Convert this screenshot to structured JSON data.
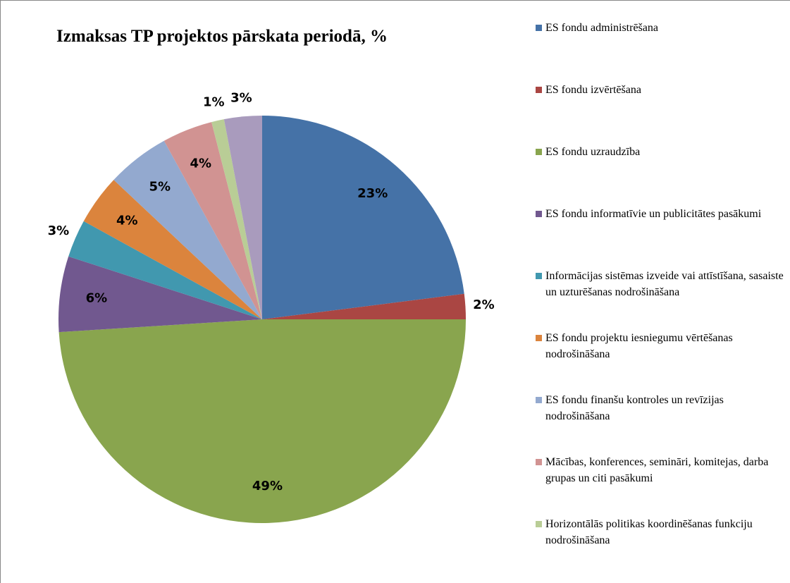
{
  "chart_data": {
    "type": "pie",
    "title": "Izmaksas TP projektos pārskata periodā, %",
    "categories": [
      "ES fondu administrēšana",
      "ES fondu izvērtēšana",
      "ES fondu uzraudzība",
      "ES fondu informatīvie un publicitātes pasākumi",
      "Informācijas sistēmas izveide vai attīstīšana, sasaiste un uzturēšanas nodrošināšana",
      "ES fondu projektu iesniegumu vērtēšanas nodrošināšana",
      "ES fondu finanšu kontroles un revīzijas nodrošināšana",
      "Mācības, konferences, semināri, komitejas, darba grupas un citi pasākumi",
      "Horizontālās politikas koordinēšanas funkciju nodrošināšana",
      null
    ],
    "values": [
      23,
      2,
      49,
      6,
      3,
      4,
      5,
      4,
      1,
      3
    ],
    "value_labels": [
      "23%",
      "2%",
      "49%",
      "6%",
      "3%",
      "4%",
      "5%",
      "4%",
      "1%",
      "3%"
    ],
    "colors": [
      "#4572a7",
      "#aa4643",
      "#89a54e",
      "#71588f",
      "#4198af",
      "#db843d",
      "#93a9cf",
      "#d19392",
      "#b9cd96",
      "#a99bbd"
    ],
    "legend": "right"
  }
}
